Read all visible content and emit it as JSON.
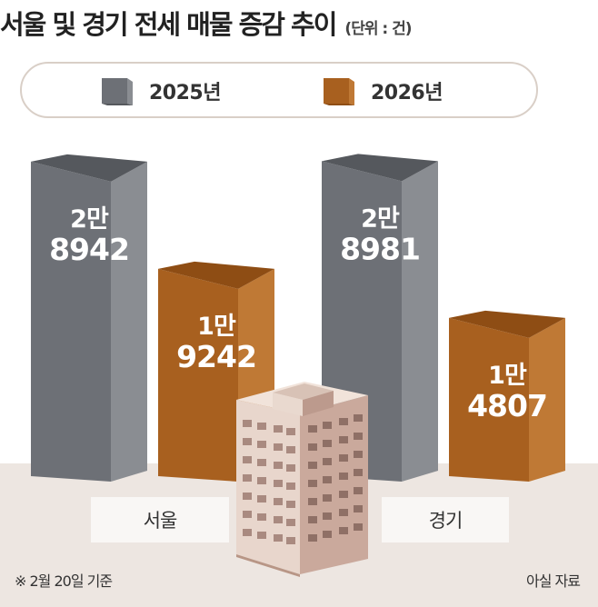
{
  "header": {
    "title": "서울 및 경기 전세 매물 증감 추이",
    "unit": "(단위 : 건)"
  },
  "legend": [
    {
      "label": "2025년",
      "color": "#6d7076"
    },
    {
      "label": "2026년",
      "color": "#a8601f"
    }
  ],
  "chart_data": {
    "type": "bar",
    "title": "서울 및 경기 전세 매물 증감 추이",
    "unit": "(단위 : 건)",
    "categories": [
      "서울",
      "경기"
    ],
    "series": [
      {
        "name": "2025년",
        "values": [
          28942,
          28981
        ],
        "data_labels": [
          [
            "2만",
            "8942"
          ],
          [
            "2만",
            "8981"
          ]
        ]
      },
      {
        "name": "2026년",
        "values": [
          19242,
          14807
        ],
        "data_labels": [
          [
            "1만",
            "9242"
          ],
          [
            "1만",
            "4807"
          ]
        ]
      }
    ],
    "ylim": [
      0,
      30000
    ],
    "grid": false,
    "legend_position": "top"
  },
  "footer": {
    "note": "※ 2월 20일 기준",
    "source": "아실 자료"
  },
  "colors": {
    "gray_front": "#6d7076",
    "gray_side": "#8a8d92",
    "gray_top": "#55585d",
    "brown_front": "#a8601f",
    "brown_side": "#bf7935",
    "brown_top": "#8e4d14",
    "ground": "#ede6e1"
  }
}
